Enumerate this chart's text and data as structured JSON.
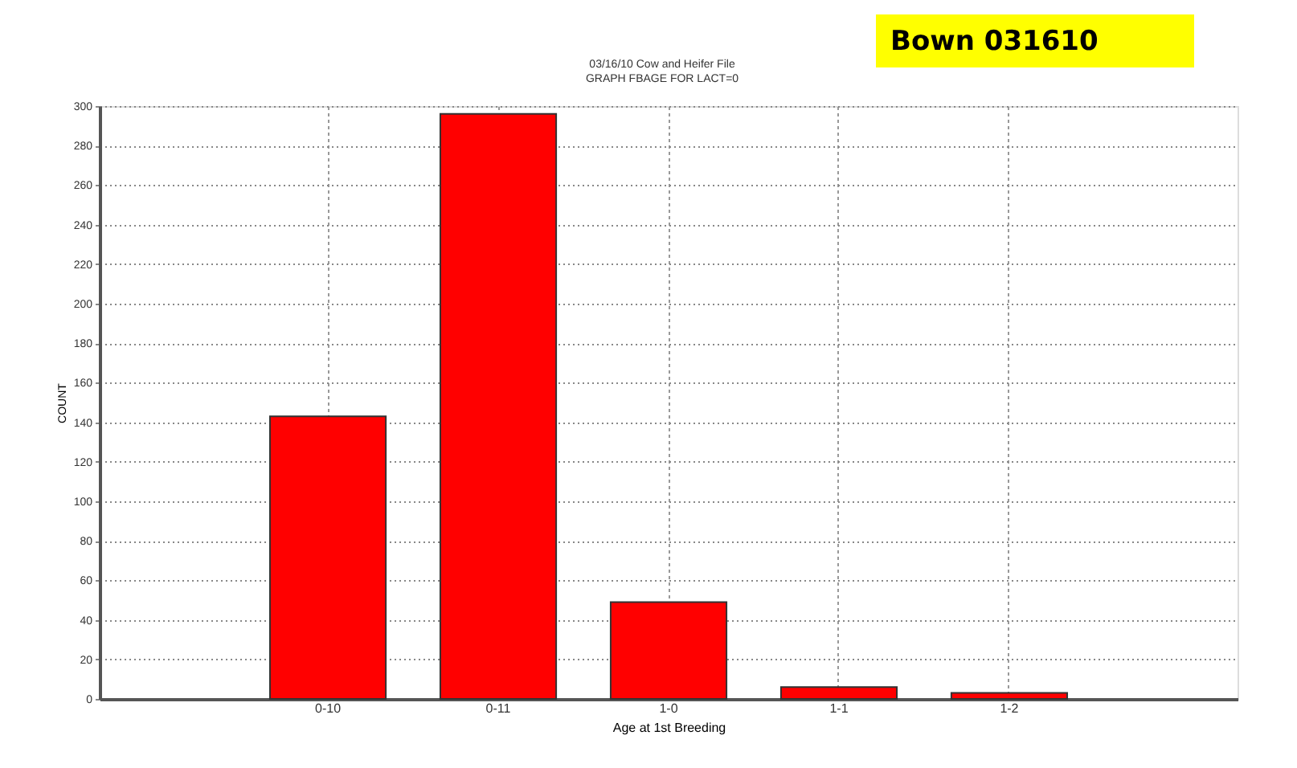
{
  "chart_data": {
    "type": "bar",
    "title": "03/16/10     Cow and Heifer File",
    "subtitle": "GRAPH FBAGE FOR LACT=0",
    "xlabel": "Age at 1st Breeding",
    "ylabel": "COUNT",
    "categories": [
      null,
      "0-10",
      "0-11",
      "1-0",
      "1-1",
      "1-2",
      null
    ],
    "values": [
      null,
      143,
      296,
      49,
      6,
      3,
      null
    ],
    "color": "#ff0000",
    "ylim": [
      0,
      300
    ],
    "yticks": [
      0,
      20,
      40,
      60,
      80,
      100,
      120,
      140,
      160,
      180,
      200,
      220,
      240,
      260,
      280,
      300
    ],
    "grid": true,
    "annotations": [
      "Bown 031610"
    ]
  }
}
